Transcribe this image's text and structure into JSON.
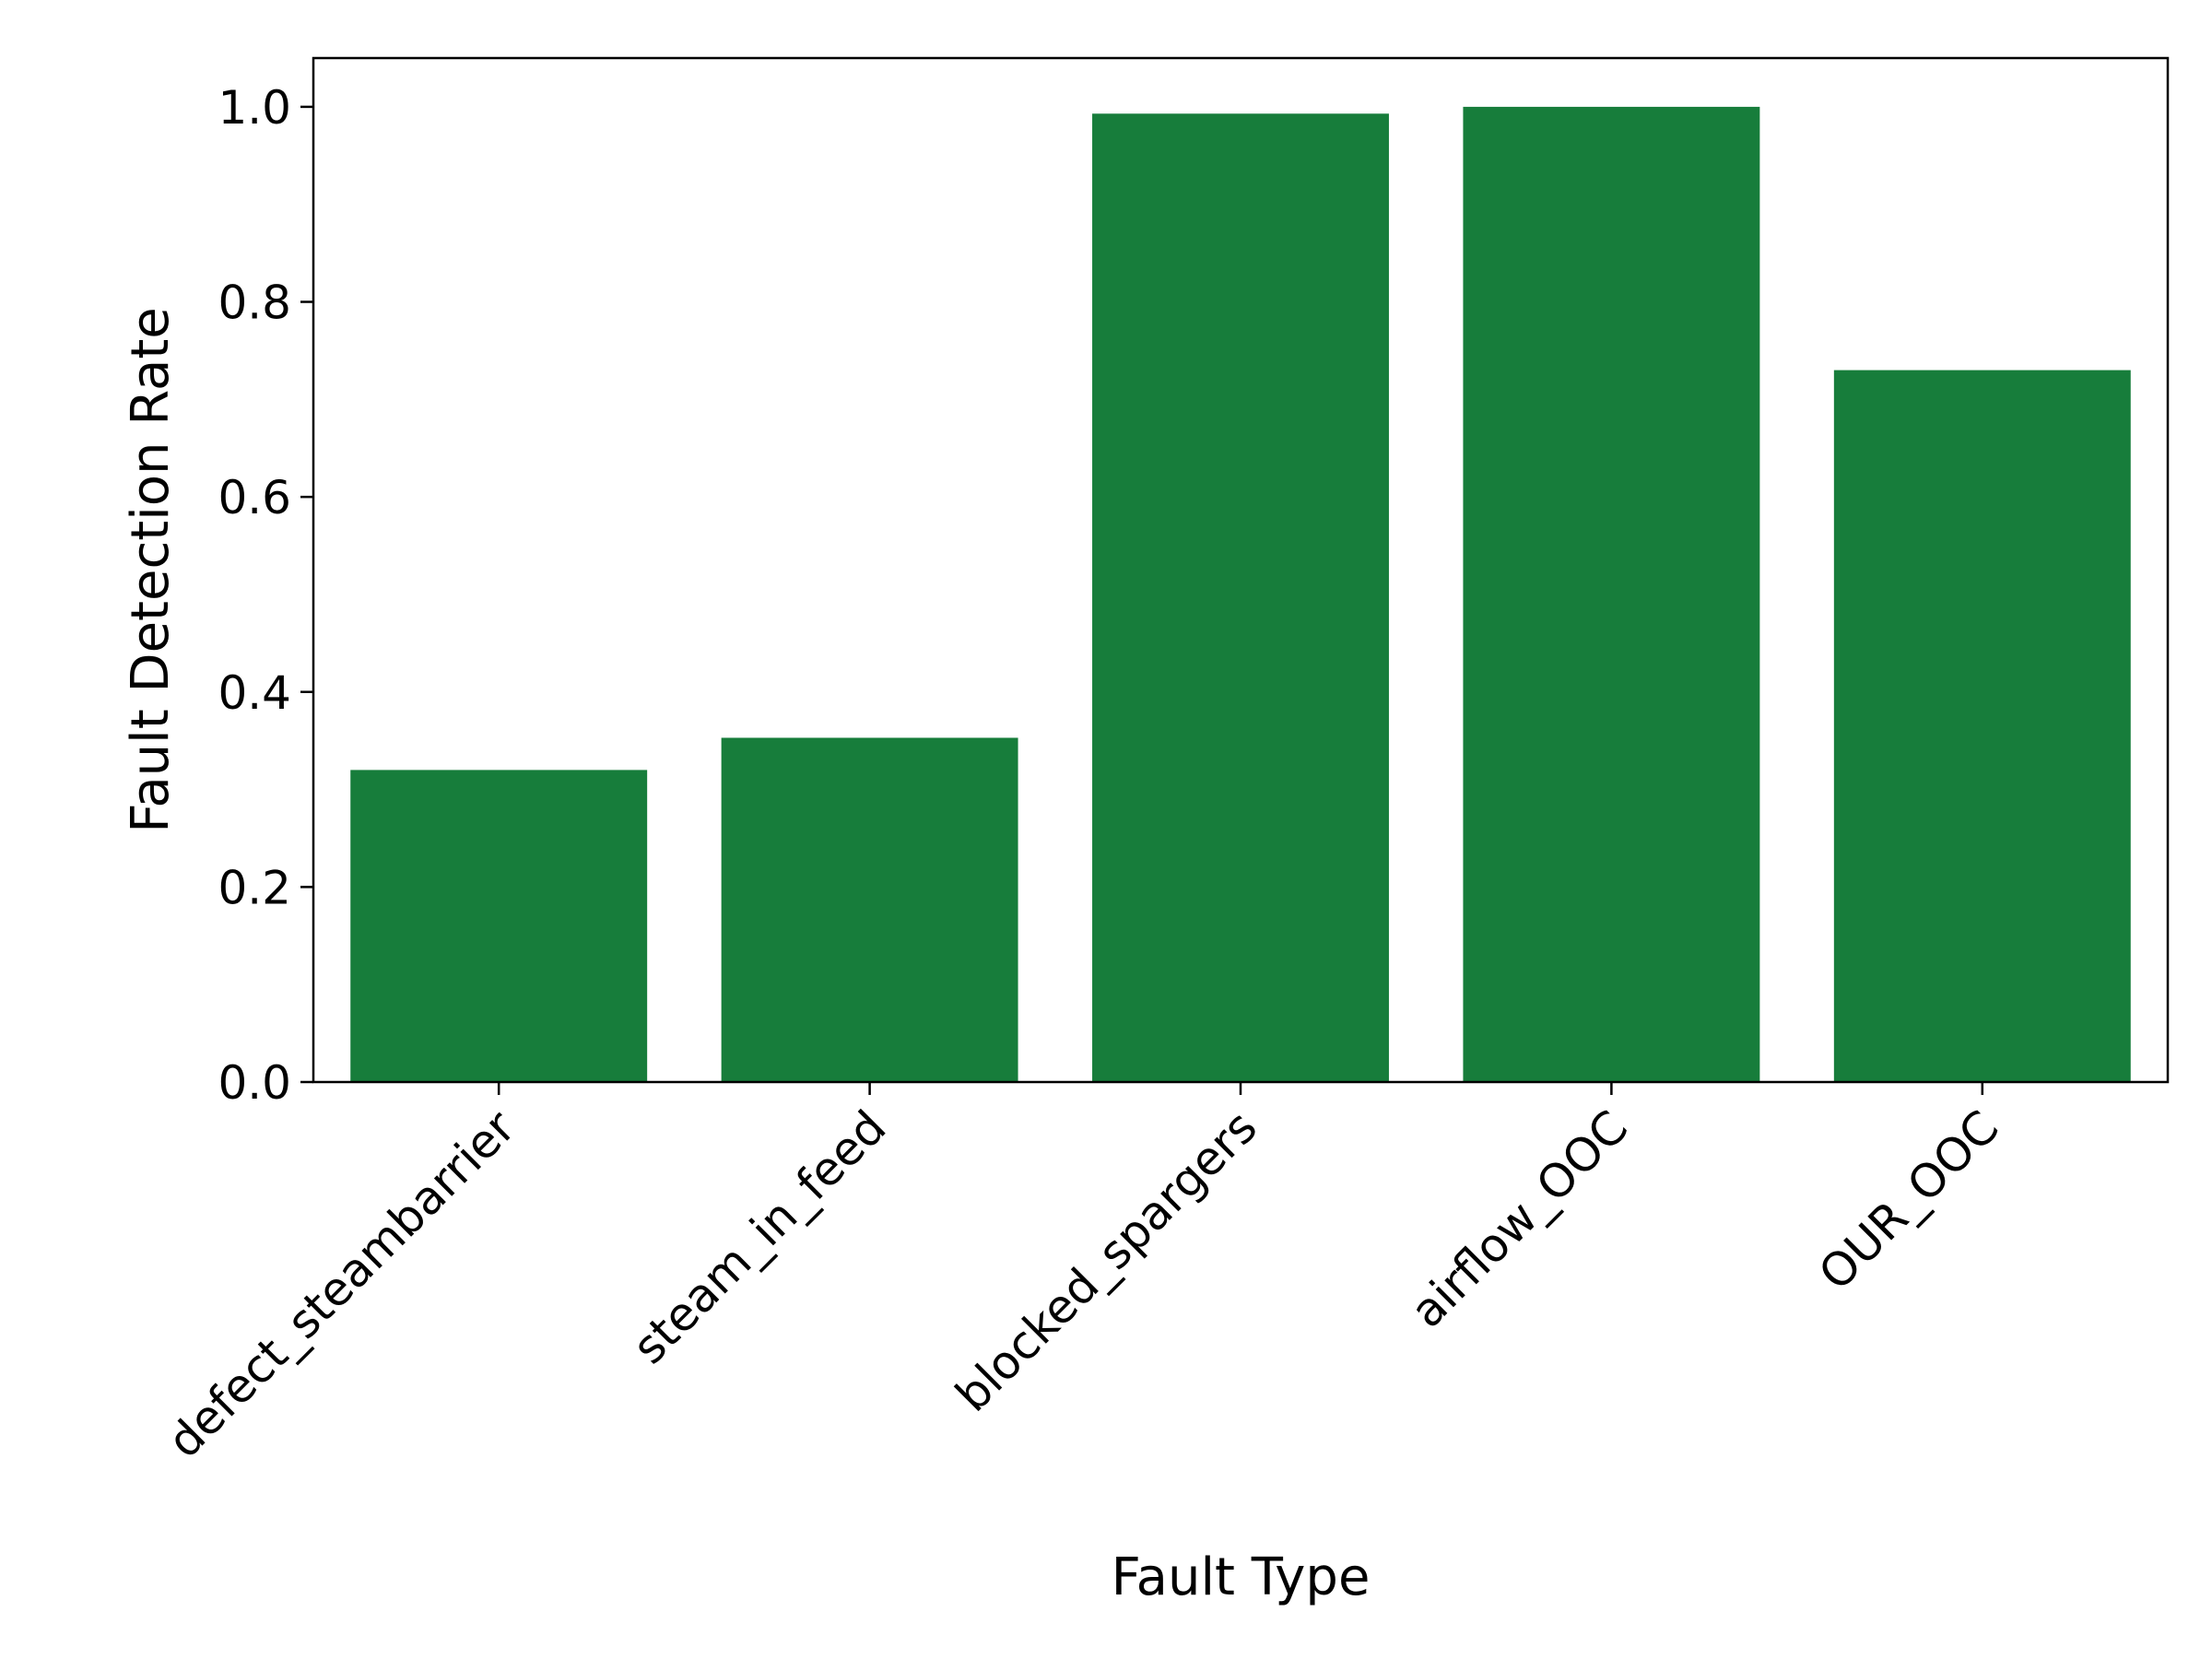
{
  "chart_data": {
    "type": "bar",
    "categories": [
      "defect_steambarrier",
      "steam_in_feed",
      "blocked_spargers",
      "airflow_OOC",
      "OUR_OOC"
    ],
    "values": [
      0.32,
      0.353,
      0.993,
      1.0,
      0.73
    ],
    "xlabel": "Fault Type",
    "ylabel": "Fault Detection Rate",
    "ylim": [
      0,
      1.05
    ],
    "yticks": [
      "0.0",
      "0.2",
      "0.4",
      "0.6",
      "0.8",
      "1.0"
    ],
    "bar_color": "#177d3b",
    "grid": false,
    "legend": "none"
  }
}
